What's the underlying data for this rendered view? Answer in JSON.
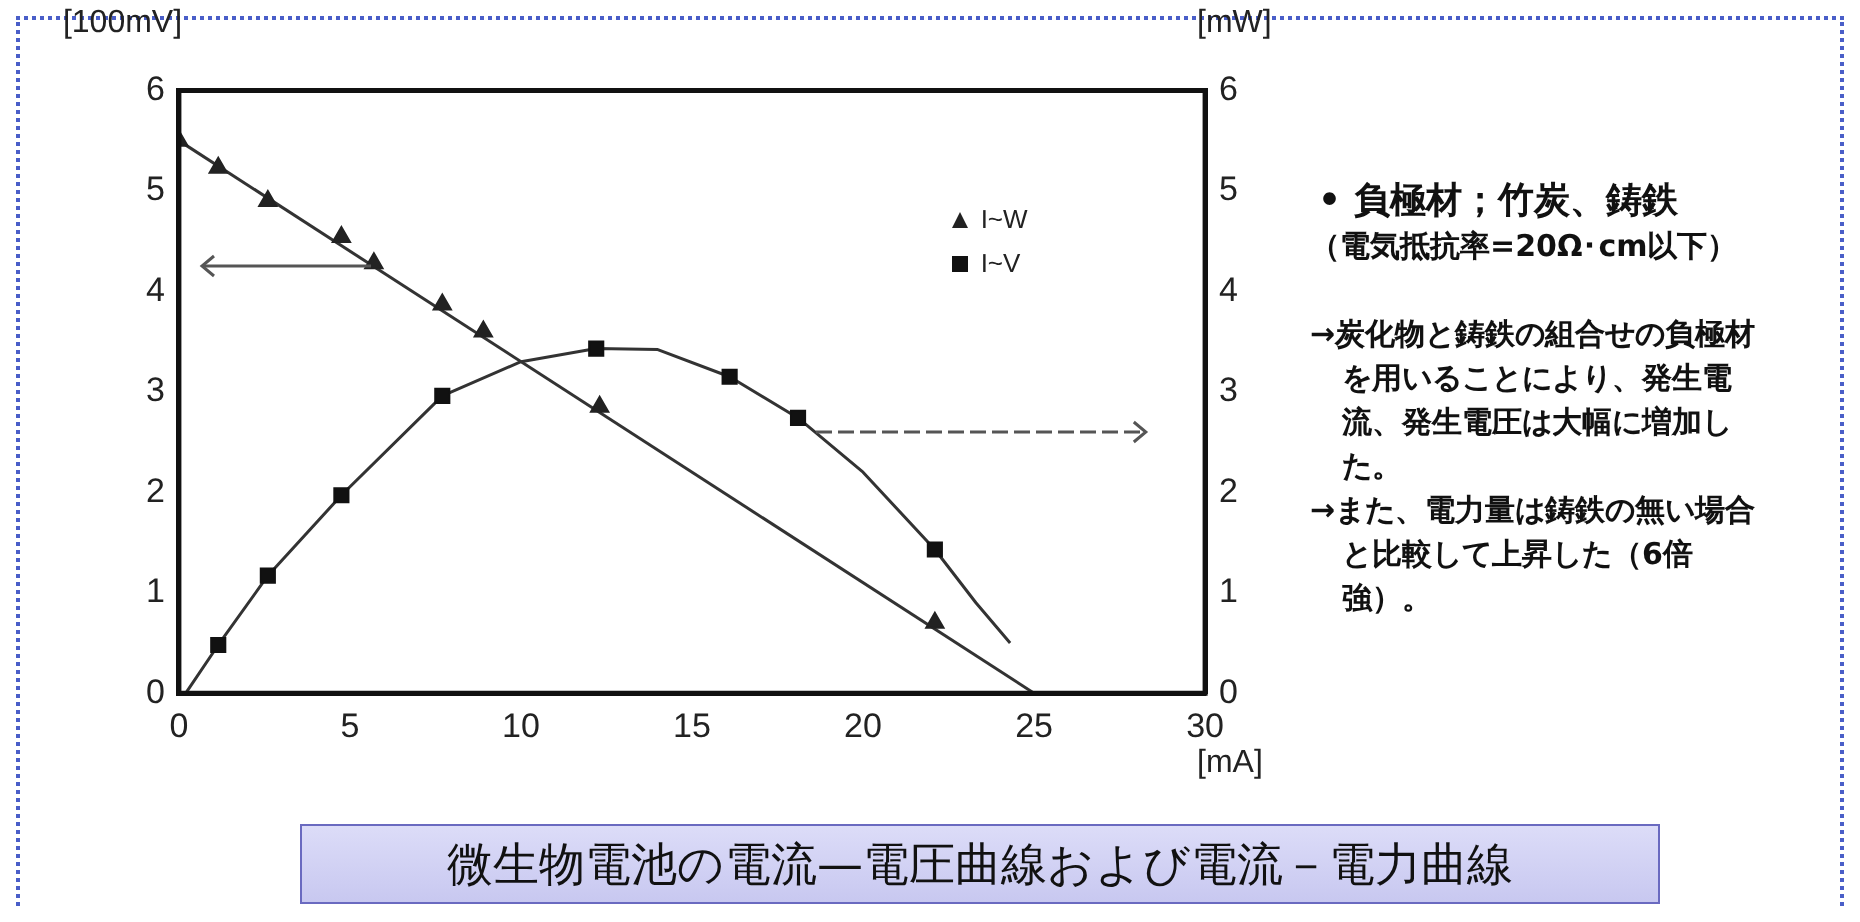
{
  "chart_data": {
    "type": "scatter",
    "title": "微生物電池の電流—電圧曲線および電流－電力曲線",
    "xlabel": "[mA]",
    "ylabel": "[100mV]",
    "y2label": "[mW]",
    "xlim": [
      0,
      30
    ],
    "xticks": [
      0,
      5,
      10,
      15,
      20,
      25,
      30
    ],
    "ylim": [
      0,
      6
    ],
    "yticks": [
      0,
      1,
      2,
      3,
      4,
      5,
      6
    ],
    "y2lim": [
      0,
      6
    ],
    "y2ticks": [
      0,
      1,
      2,
      3,
      4,
      5,
      6
    ],
    "grid": false,
    "legend": "top right",
    "series": [
      {
        "name": "I~W",
        "type": "scatter",
        "marker": "triangle",
        "color": "#222222",
        "x": [
          0,
          1.15,
          2.6,
          4.75,
          5.7,
          7.7,
          8.9,
          12.3,
          22.1
        ],
        "values": [
          5.5,
          5.23,
          4.9,
          4.54,
          4.28,
          3.87,
          3.6,
          2.85,
          0.7
        ]
      },
      {
        "name": "I~V",
        "type": "scatter",
        "marker": "square",
        "color": "#111111",
        "axis": "y2",
        "x": [
          1.15,
          2.6,
          4.75,
          7.7,
          12.2,
          16.1,
          18.1,
          22.1
        ],
        "values": [
          0.48,
          1.17,
          1.97,
          2.96,
          3.43,
          3.15,
          2.74,
          1.43
        ]
      },
      {
        "type": "line",
        "marker": "none",
        "line_style": "solid",
        "color": "#333333",
        "x": [
          0,
          25
        ],
        "values": [
          5.5,
          0
        ]
      },
      {
        "type": "line",
        "marker": "none",
        "line_style": "solid",
        "color": "#333333",
        "axis": "y2",
        "x": [
          0.2,
          1.15,
          2.6,
          4.75,
          7.7,
          10,
          12.2,
          14,
          16.1,
          18.1,
          20,
          22.1,
          23.3,
          24.3
        ],
        "values": [
          0,
          0.48,
          1.17,
          1.97,
          2.96,
          3.3,
          3.43,
          3.42,
          3.15,
          2.74,
          2.2,
          1.43,
          0.9,
          0.5
        ]
      }
    ],
    "annotations": [
      "• 負極材；竹炭、鋳鉄",
      "（電気抵抗率=20Ω･cm以下）",
      "→炭化物と鋳鉄の組合せの負極材を用いることにより、発生電流、発生電圧は大幅に増加した。",
      "→また、電力量は鋳鉄の無い場合と比較して上昇した（6倍強）。"
    ]
  }
}
